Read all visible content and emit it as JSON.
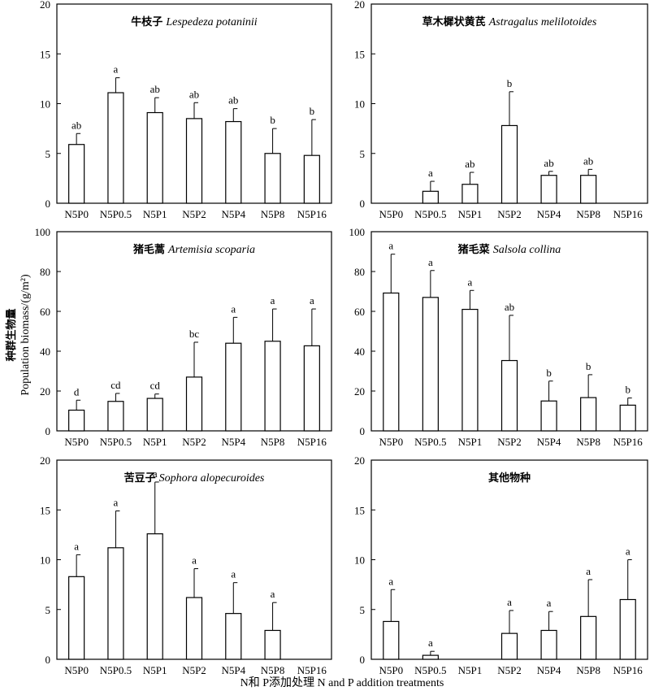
{
  "figure": {
    "ylabel_cn": "种群生物量",
    "ylabel_en": "Population biomass/(g/m²)",
    "xlabel": "N和 P添加处理 N and P addition treatments"
  },
  "chart_data": [
    {
      "type": "bar",
      "title_cn": "牛枝子",
      "title_latin": "Lespedeza potaninii",
      "categories": [
        "N5P0",
        "N5P0.5",
        "N5P1",
        "N5P2",
        "N5P4",
        "N5P8",
        "N5P16"
      ],
      "values": [
        5.9,
        11.1,
        9.1,
        8.5,
        8.2,
        5.0,
        4.8
      ],
      "errors": [
        1.1,
        1.5,
        1.5,
        1.6,
        1.3,
        2.5,
        3.6
      ],
      "significance": [
        "ab",
        "a",
        "ab",
        "ab",
        "ab",
        "b",
        "b"
      ],
      "ylim": [
        0,
        20
      ],
      "yticks": [
        0,
        5,
        10,
        15,
        20
      ]
    },
    {
      "type": "bar",
      "title_cn": "草木樨状黄芪",
      "title_latin": "Astragalus melilotoides",
      "categories": [
        "N5P0",
        "N5P0.5",
        "N5P1",
        "N5P2",
        "N5P4",
        "N5P8",
        "N5P16"
      ],
      "values": [
        null,
        1.2,
        1.9,
        7.8,
        2.8,
        2.8,
        null
      ],
      "errors": [
        null,
        1.0,
        1.2,
        3.4,
        0.4,
        0.6,
        null
      ],
      "significance": [
        "",
        "a",
        "ab",
        "b",
        "ab",
        "ab",
        ""
      ],
      "ylim": [
        0,
        20
      ],
      "yticks": [
        0,
        5,
        10,
        15,
        20
      ]
    },
    {
      "type": "bar",
      "title_cn": "猪毛蒿",
      "title_latin": "Artemisia scoparia",
      "categories": [
        "N5P0",
        "N5P0.5",
        "N5P1",
        "N5P2",
        "N5P4",
        "N5P8",
        "N5P16"
      ],
      "values": [
        10.4,
        14.8,
        16.3,
        27.0,
        44.0,
        45.0,
        42.7
      ],
      "errors": [
        5.0,
        4.0,
        2.2,
        17.5,
        13.0,
        16.2,
        18.5
      ],
      "significance": [
        "d",
        "cd",
        "cd",
        "bc",
        "a",
        "a",
        "a"
      ],
      "ylim": [
        0,
        100
      ],
      "yticks": [
        0,
        20,
        40,
        60,
        80,
        100
      ]
    },
    {
      "type": "bar",
      "title_cn": "猪毛菜",
      "title_latin": "Salsola collina",
      "categories": [
        "N5P0",
        "N5P0.5",
        "N5P1",
        "N5P2",
        "N5P4",
        "N5P8",
        "N5P16"
      ],
      "values": [
        69.2,
        67.0,
        61.0,
        35.3,
        15.0,
        16.7,
        12.9
      ],
      "errors": [
        19.5,
        13.5,
        9.5,
        22.7,
        10.0,
        11.5,
        3.6
      ],
      "significance": [
        "a",
        "a",
        "a",
        "ab",
        "b",
        "b",
        "b"
      ],
      "ylim": [
        0,
        100
      ],
      "yticks": [
        0,
        20,
        40,
        60,
        80,
        100
      ]
    },
    {
      "type": "bar",
      "title_cn": "苦豆子",
      "title_latin": "Sophora alopecuroides",
      "categories": [
        "N5P0",
        "N5P0.5",
        "N5P1",
        "N5P2",
        "N5P4",
        "N5P8",
        "N5P16"
      ],
      "values": [
        8.3,
        11.2,
        12.6,
        6.2,
        4.6,
        2.9,
        null
      ],
      "errors": [
        2.2,
        3.7,
        5.2,
        2.9,
        3.1,
        2.8,
        null
      ],
      "significance": [
        "a",
        "a",
        "a",
        "a",
        "a",
        "a",
        ""
      ],
      "ylim": [
        0,
        20
      ],
      "yticks": [
        0,
        5,
        10,
        15,
        20
      ]
    },
    {
      "type": "bar",
      "title_cn": "其他物种",
      "title_latin": "",
      "categories": [
        "N5P0",
        "N5P0.5",
        "N5P1",
        "N5P2",
        "N5P4",
        "N5P8",
        "N5P16"
      ],
      "values": [
        3.8,
        0.4,
        null,
        2.6,
        2.9,
        4.3,
        6.0
      ],
      "errors": [
        3.2,
        0.4,
        null,
        2.3,
        1.9,
        3.7,
        4.0
      ],
      "significance": [
        "a",
        "a",
        "",
        "a",
        "a",
        "a",
        "a"
      ],
      "ylim": [
        0,
        20
      ],
      "yticks": [
        0,
        5,
        10,
        15,
        20
      ]
    }
  ]
}
